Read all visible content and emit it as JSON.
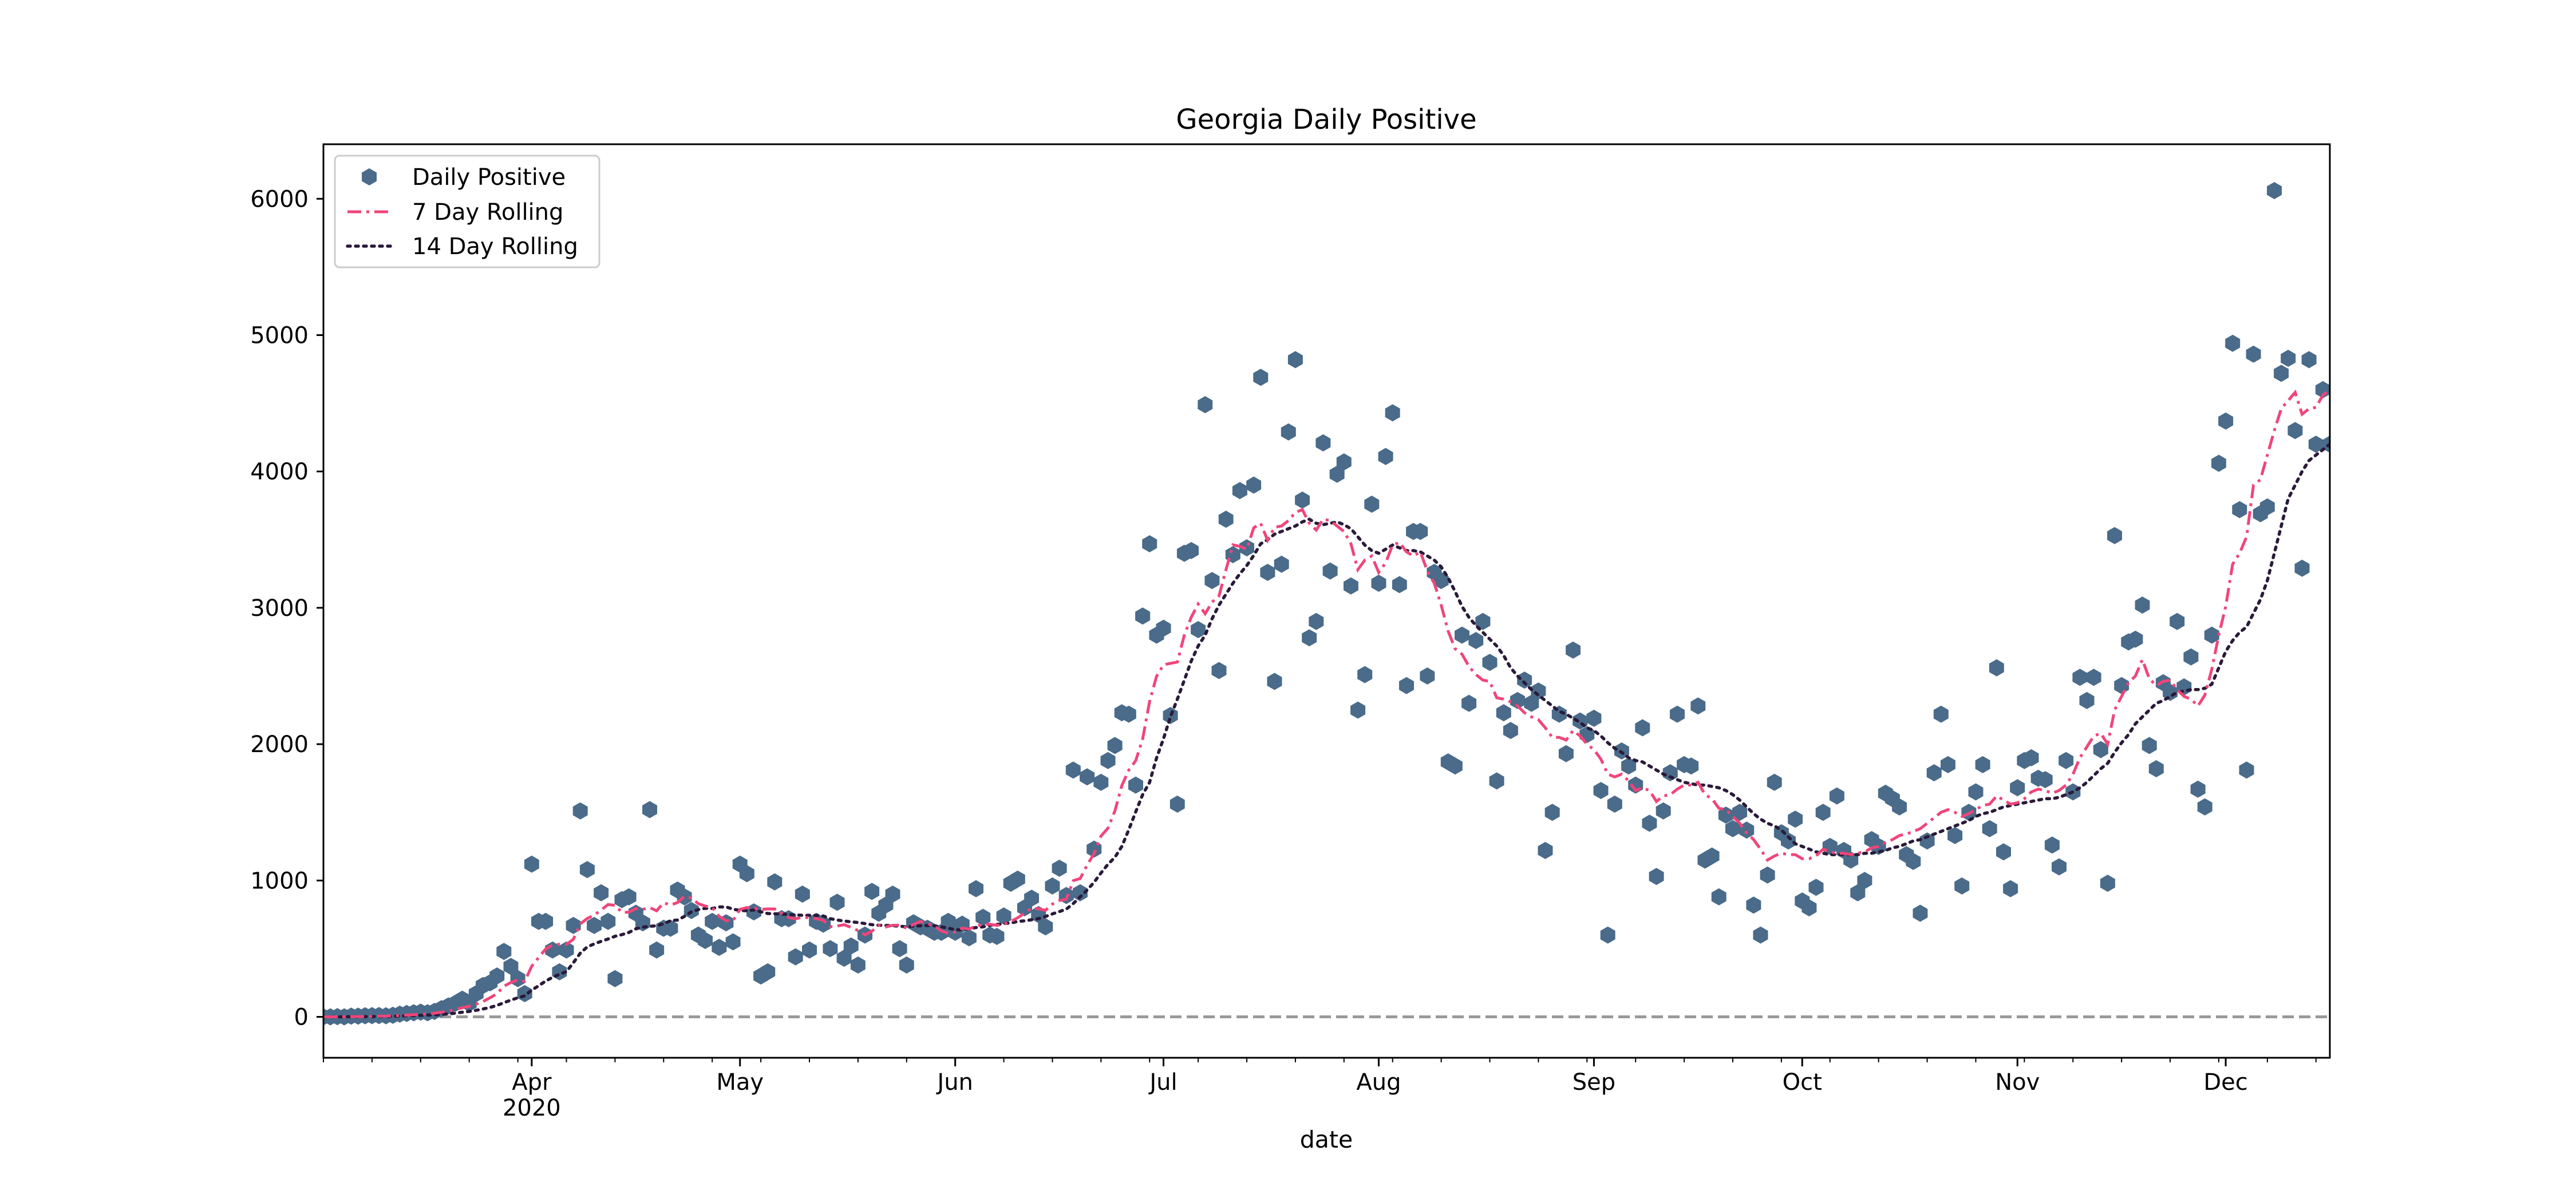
{
  "chart_data": {
    "type": "scatter",
    "title": "Georgia Daily Positive",
    "xlabel": "date",
    "ylabel": "",
    "xlim": [
      "2020-03-02",
      "2020-12-16"
    ],
    "ylim": [
      -300,
      6400
    ],
    "grid": false,
    "legend_position": "top-left",
    "y_ticks": [
      0,
      1000,
      2000,
      3000,
      4000,
      5000,
      6000
    ],
    "x_ticks": [
      {
        "date": "2020-04-01",
        "label": "Apr",
        "sublabel": "2020"
      },
      {
        "date": "2020-05-01",
        "label": "May",
        "sublabel": ""
      },
      {
        "date": "2020-06-01",
        "label": "Jun",
        "sublabel": ""
      },
      {
        "date": "2020-07-01",
        "label": "Jul",
        "sublabel": ""
      },
      {
        "date": "2020-08-01",
        "label": "Aug",
        "sublabel": ""
      },
      {
        "date": "2020-09-01",
        "label": "Sep",
        "sublabel": ""
      },
      {
        "date": "2020-10-01",
        "label": "Oct",
        "sublabel": ""
      },
      {
        "date": "2020-11-01",
        "label": "Nov",
        "sublabel": ""
      },
      {
        "date": "2020-12-01",
        "label": "Dec",
        "sublabel": ""
      }
    ],
    "reference_line": {
      "y": 0,
      "color": "#999999",
      "style": "dashed"
    },
    "series": [
      {
        "name": "Daily Positive",
        "kind": "scatter",
        "color": "#4a6b8a",
        "marker": "hexagon"
      },
      {
        "name": "7 Day Rolling",
        "kind": "line",
        "color": "#f0457a",
        "style": "dashdot"
      },
      {
        "name": "14 Day Rolling",
        "kind": "line",
        "color": "#2a1a3a",
        "style": "dotted"
      }
    ],
    "daily_positive": {
      "dates": [
        "2020-03-02",
        "2020-03-03",
        "2020-03-04",
        "2020-03-05",
        "2020-03-06",
        "2020-03-07",
        "2020-03-08",
        "2020-03-09",
        "2020-03-10",
        "2020-03-11",
        "2020-03-12",
        "2020-03-13",
        "2020-03-14",
        "2020-03-15",
        "2020-03-16",
        "2020-03-17",
        "2020-03-18",
        "2020-03-19",
        "2020-03-20",
        "2020-03-21",
        "2020-03-22",
        "2020-03-23",
        "2020-03-24",
        "2020-03-25",
        "2020-03-26",
        "2020-03-27",
        "2020-03-28",
        "2020-03-29",
        "2020-03-30",
        "2020-03-31",
        "2020-04-01",
        "2020-04-02",
        "2020-04-03",
        "2020-04-04",
        "2020-04-05",
        "2020-04-06",
        "2020-04-07",
        "2020-04-08",
        "2020-04-09",
        "2020-04-10",
        "2020-04-11",
        "2020-04-12",
        "2020-04-13",
        "2020-04-14",
        "2020-04-15",
        "2020-04-16",
        "2020-04-17",
        "2020-04-18",
        "2020-04-19",
        "2020-04-20",
        "2020-04-21",
        "2020-04-22",
        "2020-04-23",
        "2020-04-24",
        "2020-04-25",
        "2020-04-26",
        "2020-04-27",
        "2020-04-28",
        "2020-04-29",
        "2020-04-30",
        "2020-05-01",
        "2020-05-02",
        "2020-05-03",
        "2020-05-04",
        "2020-05-05",
        "2020-05-06",
        "2020-05-07",
        "2020-05-08",
        "2020-05-09",
        "2020-05-10",
        "2020-05-11",
        "2020-05-12",
        "2020-05-13",
        "2020-05-14",
        "2020-05-15",
        "2020-05-16",
        "2020-05-17",
        "2020-05-18",
        "2020-05-19",
        "2020-05-20",
        "2020-05-21",
        "2020-05-22",
        "2020-05-23",
        "2020-05-24",
        "2020-05-25",
        "2020-05-26",
        "2020-05-27",
        "2020-05-28",
        "2020-05-29",
        "2020-05-30",
        "2020-05-31",
        "2020-06-01",
        "2020-06-02",
        "2020-06-03",
        "2020-06-04",
        "2020-06-05",
        "2020-06-06",
        "2020-06-07",
        "2020-06-08",
        "2020-06-09",
        "2020-06-10",
        "2020-06-11",
        "2020-06-12",
        "2020-06-13",
        "2020-06-14",
        "2020-06-15",
        "2020-06-16",
        "2020-06-17",
        "2020-06-18",
        "2020-06-19",
        "2020-06-20",
        "2020-06-21",
        "2020-06-22",
        "2020-06-23",
        "2020-06-24",
        "2020-06-25",
        "2020-06-26",
        "2020-06-27",
        "2020-06-28",
        "2020-06-29",
        "2020-06-30",
        "2020-07-01",
        "2020-07-02",
        "2020-07-03",
        "2020-07-04",
        "2020-07-05",
        "2020-07-06",
        "2020-07-07",
        "2020-07-08",
        "2020-07-09",
        "2020-07-10",
        "2020-07-11",
        "2020-07-12",
        "2020-07-13",
        "2020-07-14",
        "2020-07-15",
        "2020-07-16",
        "2020-07-17",
        "2020-07-18",
        "2020-07-19",
        "2020-07-20",
        "2020-07-21",
        "2020-07-22",
        "2020-07-23",
        "2020-07-24",
        "2020-07-25",
        "2020-07-26",
        "2020-07-27",
        "2020-07-28",
        "2020-07-29",
        "2020-07-30",
        "2020-07-31",
        "2020-08-01",
        "2020-08-02",
        "2020-08-03",
        "2020-08-04",
        "2020-08-05",
        "2020-08-06",
        "2020-08-07",
        "2020-08-08",
        "2020-08-09",
        "2020-08-10",
        "2020-08-11",
        "2020-08-12",
        "2020-08-13",
        "2020-08-14",
        "2020-08-15",
        "2020-08-16",
        "2020-08-17",
        "2020-08-18",
        "2020-08-19",
        "2020-08-20",
        "2020-08-21",
        "2020-08-22",
        "2020-08-23",
        "2020-08-24",
        "2020-08-25",
        "2020-08-26",
        "2020-08-27",
        "2020-08-28",
        "2020-08-29",
        "2020-08-30",
        "2020-08-31",
        "2020-09-01",
        "2020-09-02",
        "2020-09-03",
        "2020-09-04",
        "2020-09-05",
        "2020-09-06",
        "2020-09-07",
        "2020-09-08",
        "2020-09-09",
        "2020-09-10",
        "2020-09-11",
        "2020-09-12",
        "2020-09-13",
        "2020-09-14",
        "2020-09-15",
        "2020-09-16",
        "2020-09-17",
        "2020-09-18",
        "2020-09-19",
        "2020-09-20",
        "2020-09-21",
        "2020-09-22",
        "2020-09-23",
        "2020-09-24",
        "2020-09-25",
        "2020-09-26",
        "2020-09-27",
        "2020-09-28",
        "2020-09-29",
        "2020-09-30",
        "2020-10-01",
        "2020-10-02",
        "2020-10-03",
        "2020-10-04",
        "2020-10-05",
        "2020-10-06",
        "2020-10-07",
        "2020-10-08",
        "2020-10-09",
        "2020-10-10",
        "2020-10-11",
        "2020-10-12",
        "2020-10-13",
        "2020-10-14",
        "2020-10-15",
        "2020-10-16",
        "2020-10-17",
        "2020-10-18",
        "2020-10-19",
        "2020-10-20",
        "2020-10-21",
        "2020-10-22",
        "2020-10-23",
        "2020-10-24",
        "2020-10-25",
        "2020-10-26",
        "2020-10-27",
        "2020-10-28",
        "2020-10-29",
        "2020-10-30",
        "2020-10-31",
        "2020-11-01",
        "2020-11-02",
        "2020-11-03",
        "2020-11-04",
        "2020-11-05",
        "2020-11-06",
        "2020-11-07",
        "2020-11-08",
        "2020-11-09",
        "2020-11-10",
        "2020-11-11",
        "2020-11-12",
        "2020-11-13",
        "2020-11-14",
        "2020-11-15",
        "2020-11-16",
        "2020-11-17",
        "2020-11-18",
        "2020-11-19",
        "2020-11-20",
        "2020-11-21",
        "2020-11-22",
        "2020-11-23",
        "2020-11-24",
        "2020-11-25",
        "2020-11-26",
        "2020-11-27",
        "2020-11-28",
        "2020-11-29",
        "2020-11-30",
        "2020-12-01",
        "2020-12-02",
        "2020-12-03",
        "2020-12-04",
        "2020-12-05",
        "2020-12-06",
        "2020-12-07",
        "2020-12-08",
        "2020-12-09",
        "2020-12-10",
        "2020-12-11",
        "2020-12-12",
        "2020-12-13",
        "2020-12-14",
        "2020-12-15",
        "2020-12-16"
      ],
      "values": [
        0,
        0,
        2,
        0,
        5,
        5,
        8,
        9,
        10,
        8,
        12,
        20,
        25,
        30,
        35,
        30,
        40,
        60,
        80,
        100,
        130,
        100,
        170,
        230,
        250,
        300,
        480,
        370,
        280,
        170,
        1120,
        700,
        700,
        490,
        330,
        490,
        670,
        1510,
        1080,
        670,
        910,
        700,
        280,
        860,
        880,
        760,
        690,
        1520,
        490,
        650,
        650,
        930,
        880,
        780,
        600,
        560,
        700,
        510,
        690,
        550,
        1120,
        1050,
        770,
        300,
        330,
        990,
        720,
        720,
        440,
        900,
        490,
        700,
        680,
        500,
        840,
        430,
        520,
        380,
        600,
        920,
        760,
        820,
        900,
        500,
        380,
        690,
        660,
        650,
        620,
        620,
        700,
        620,
        680,
        580,
        940,
        730,
        600,
        590,
        740,
        980,
        1010,
        800,
        870,
        750,
        660,
        960,
        1090,
        890,
        1810,
        910,
        1760,
        1230,
        1720,
        1880,
        1990,
        2230,
        2220,
        1700,
        2940,
        3470,
        2800,
        2850,
        2210,
        1560,
        3400,
        3420,
        2840,
        4490,
        3200,
        2540,
        3650,
        3390,
        3860,
        3440,
        3900,
        4690,
        3260,
        2460,
        3320,
        4290,
        4820,
        3790,
        2780,
        2900,
        4210,
        3270,
        3980,
        4070,
        3160,
        2250,
        2510,
        3760,
        3180,
        4110,
        4430,
        3170,
        2430,
        3560,
        3560,
        2500,
        3260,
        3200,
        1870,
        1840,
        2800,
        2300,
        2760,
        2900,
        2600,
        1730,
        2230,
        2100,
        2320,
        2470,
        2300,
        2390,
        1220,
        1500,
        2220,
        1930,
        2690,
        2170,
        2070,
        2190,
        1660,
        600,
        1560,
        1950,
        1840,
        1700,
        2120,
        1420,
        1030,
        1510,
        1790,
        2220,
        1850,
        1840,
        2280,
        1150,
        1180,
        880,
        1480,
        1380,
        1500,
        1370,
        820,
        600,
        1040,
        1720,
        1350,
        1290,
        1450,
        850,
        800,
        950,
        1500,
        1250,
        1620,
        1220,
        1150,
        910,
        1000,
        1300,
        1250,
        1640,
        1600,
        1540,
        1190,
        1140,
        760,
        1290,
        1790,
        2220,
        1850,
        1330,
        960,
        1500,
        1650,
        1850,
        1380,
        2560,
        1210,
        940,
        1680,
        1880,
        1900,
        1750,
        1740,
        1260,
        1100,
        1880,
        1650,
        2490,
        2320,
        2490,
        1960,
        980,
        3530,
        2430,
        2750,
        2770,
        3020,
        1990,
        1820,
        2450,
        2380,
        2900,
        2420,
        2640,
        1670,
        1540,
        2800,
        4060,
        4370,
        4940,
        3720,
        1810,
        4860,
        3690,
        3740,
        6060,
        4720,
        4830,
        4300,
        3290,
        4820,
        4200,
        4600,
        4200
      ]
    },
    "rolling_7": [
      0,
      0,
      0,
      1,
      2,
      2,
      3,
      4,
      5,
      6,
      8,
      10,
      13,
      16,
      19,
      23,
      27,
      34,
      43,
      54,
      67,
      78,
      93,
      113,
      140,
      170,
      225,
      252,
      271,
      261,
      371,
      436,
      497,
      527,
      533,
      531,
      569,
      682,
      722,
      746,
      784,
      824,
      818,
      766,
      768,
      794,
      789,
      801,
      778,
      837,
      820,
      838,
      885,
      872,
      830,
      813,
      803,
      737,
      705,
      706,
      788,
      802,
      799,
      787,
      792,
      791,
      762,
      729,
      719,
      732,
      727,
      720,
      708,
      661,
      666,
      676,
      656,
      633,
      602,
      628,
      672,
      659,
      672,
      672,
      650,
      678,
      700,
      684,
      665,
      630,
      614,
      621,
      651,
      644,
      667,
      677,
      680,
      671,
      679,
      700,
      727,
      760,
      798,
      792,
      781,
      827,
      853,
      862,
      998,
      1015,
      1113,
      1198,
      1326,
      1384,
      1510,
      1696,
      1810,
      1879,
      2038,
      2312,
      2498,
      2582,
      2593,
      2602,
      2800,
      2931,
      3028,
      2957,
      3042,
      3087,
      3279,
      3462,
      3450,
      3430,
      3587,
      3620,
      3495,
      3590,
      3600,
      3640,
      3700,
      3720,
      3620,
      3570,
      3650,
      3640,
      3600,
      3560,
      3470,
      3280,
      3350,
      3380,
      3260,
      3330,
      3460,
      3480,
      3410,
      3380,
      3410,
      3270,
      3180,
      3020,
      2830,
      2700,
      2660,
      2570,
      2510,
      2470,
      2460,
      2340,
      2330,
      2310,
      2280,
      2230,
      2200,
      2180,
      2120,
      2050,
      2050,
      2030,
      2100,
      2060,
      2000,
      1960,
      1890,
      1780,
      1760,
      1780,
      1730,
      1660,
      1680,
      1660,
      1580,
      1620,
      1630,
      1670,
      1700,
      1700,
      1720,
      1630,
      1600,
      1530,
      1520,
      1470,
      1420,
      1350,
      1300,
      1230,
      1150,
      1180,
      1200,
      1190,
      1190,
      1160,
      1160,
      1180,
      1230,
      1210,
      1200,
      1200,
      1190,
      1200,
      1210,
      1240,
      1250,
      1280,
      1300,
      1330,
      1340,
      1360,
      1380,
      1420,
      1460,
      1500,
      1520,
      1500,
      1470,
      1490,
      1520,
      1550,
      1560,
      1620,
      1590,
      1560,
      1570,
      1600,
      1650,
      1670,
      1660,
      1640,
      1660,
      1700,
      1780,
      1900,
      1980,
      2060,
      2080,
      2000,
      2250,
      2350,
      2450,
      2500,
      2620,
      2480,
      2430,
      2460,
      2470,
      2400,
      2350,
      2330,
      2280,
      2360,
      2550,
      2800,
      3010,
      3320,
      3400,
      3520,
      3900,
      3940,
      4120,
      4300,
      4460,
      4520,
      4580,
      4420,
      4460,
      4470,
      4560,
      4600
    ],
    "rolling_14": [
      0,
      0,
      0,
      0,
      1,
      1,
      2,
      2,
      3,
      3,
      4,
      6,
      8,
      9,
      11,
      13,
      15,
      18,
      22,
      27,
      34,
      40,
      48,
      58,
      69,
      84,
      104,
      123,
      140,
      154,
      196,
      228,
      262,
      290,
      312,
      332,
      397,
      467,
      513,
      535,
      554,
      571,
      591,
      603,
      619,
      646,
      658,
      664,
      668,
      683,
      705,
      710,
      737,
      770,
      787,
      796,
      795,
      806,
      806,
      790,
      780,
      778,
      784,
      771,
      758,
      756,
      754,
      750,
      748,
      745,
      745,
      744,
      740,
      720,
      710,
      703,
      697,
      692,
      684,
      676,
      672,
      670,
      669,
      665,
      660,
      665,
      668,
      670,
      668,
      660,
      650,
      640,
      637,
      647,
      655,
      660,
      672,
      678,
      684,
      688,
      700,
      704,
      712,
      720,
      736,
      755,
      772,
      790,
      831,
      880,
      930,
      987,
      1055,
      1119,
      1170,
      1250,
      1373,
      1504,
      1630,
      1720,
      1899,
      2040,
      2200,
      2330,
      2470,
      2610,
      2720,
      2800,
      2920,
      3020,
      3100,
      3180,
      3250,
      3310,
      3385,
      3470,
      3500,
      3540,
      3560,
      3580,
      3600,
      3630,
      3650,
      3620,
      3610,
      3620,
      3630,
      3610,
      3580,
      3520,
      3460,
      3420,
      3400,
      3430,
      3460,
      3440,
      3420,
      3420,
      3410,
      3380,
      3350,
      3300,
      3220,
      3120,
      3010,
      2930,
      2870,
      2820,
      2770,
      2720,
      2650,
      2560,
      2500,
      2450,
      2400,
      2360,
      2320,
      2280,
      2240,
      2220,
      2190,
      2160,
      2120,
      2100,
      2060,
      2010,
      1970,
      1940,
      1900,
      1880,
      1870,
      1840,
      1810,
      1780,
      1760,
      1740,
      1720,
      1710,
      1700,
      1700,
      1690,
      1680,
      1660,
      1630,
      1590,
      1540,
      1490,
      1450,
      1420,
      1400,
      1370,
      1320,
      1270,
      1250,
      1230,
      1210,
      1200,
      1190,
      1190,
      1190,
      1190,
      1190,
      1200,
      1200,
      1210,
      1220,
      1240,
      1250,
      1270,
      1290,
      1300,
      1320,
      1340,
      1360,
      1380,
      1400,
      1420,
      1440,
      1470,
      1490,
      1500,
      1520,
      1540,
      1550,
      1560,
      1570,
      1580,
      1590,
      1600,
      1600,
      1610,
      1630,
      1650,
      1680,
      1720,
      1770,
      1820,
      1860,
      1940,
      2010,
      2070,
      2150,
      2200,
      2250,
      2300,
      2320,
      2350,
      2380,
      2390,
      2400,
      2400,
      2410,
      2440,
      2560,
      2680,
      2760,
      2820,
      2860,
      2960,
      3060,
      3200,
      3400,
      3600,
      3800,
      3900,
      4000,
      4080,
      4120,
      4160,
      4200
    ]
  }
}
